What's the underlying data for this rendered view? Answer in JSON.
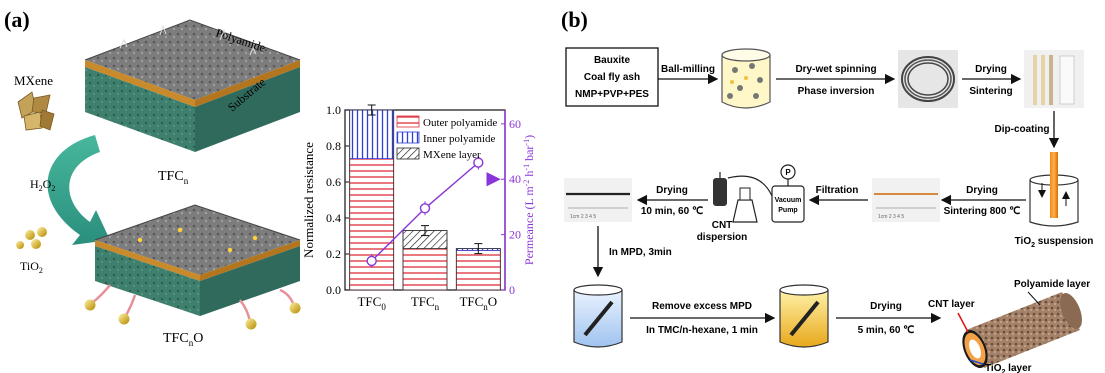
{
  "panel_a": {
    "label": "(a)",
    "labels": {
      "polyamide": "Polyamide",
      "substrate": "Substrate",
      "mxene": "MXene",
      "h2o2": "H",
      "h2o2_sub": "2",
      "h2o2_o": "O",
      "h2o2_sub2": "2",
      "tio2": "TiO",
      "tio2_sub": "2",
      "tfcn": "TFC",
      "tfcn_sub": "n",
      "tfcno": "TFC",
      "tfcno_sub": "n",
      "tfcno_o": "O"
    }
  },
  "chart_data": {
    "type": "bar",
    "categories": [
      "TFC0",
      "TFCn",
      "TFCnO"
    ],
    "tick_labels": [
      {
        "base": "TFC",
        "sub": "0",
        "suffix": ""
      },
      {
        "base": "TFC",
        "sub": "n",
        "suffix": ""
      },
      {
        "base": "TFC",
        "sub": "n",
        "suffix": "O"
      }
    ],
    "ylabel": "Normalized resistance",
    "y2label": "Permeance (L m-2 h-1 bar-1)",
    "y2label_parts": [
      "Permeance (L m",
      "-2",
      " h",
      "-1",
      " bar",
      "-1",
      ")"
    ],
    "ylim": [
      0,
      1.0
    ],
    "yticks": [
      0.0,
      0.2,
      0.4,
      0.6,
      0.8,
      1.0
    ],
    "y2lim": [
      0,
      65
    ],
    "y2ticks": [
      0,
      20,
      40,
      60
    ],
    "series": [
      {
        "name": "Outer polyamide",
        "values": [
          0.73,
          0.23,
          0.22
        ]
      },
      {
        "name": "Inner polyamide",
        "values": [
          0.27,
          0.0,
          0.01
        ]
      },
      {
        "name": "MXene layer",
        "values": [
          0.0,
          0.1,
          0.0
        ]
      }
    ],
    "totals": [
      1.0,
      0.33,
      0.23
    ],
    "permeance": [
      10.5,
      29.5,
      46.0
    ],
    "legend_position": "top-right",
    "colors": {
      "outer": "#e0303a",
      "inner": "#2e3fd8",
      "mxene": "#222222",
      "permeance": "#8a35d8"
    }
  },
  "panel_b": {
    "label": "(b)",
    "box_lines": [
      "Bauxite",
      "Coal fly ash",
      "NMP+PVP+PES"
    ],
    "ball_milling": "Ball-milling",
    "dry_wet_spinning": "Dry-wet  spinning",
    "phase_inversion": "Phase inversion",
    "drying1": "Drying",
    "sintering": "Sintering",
    "dip_coating": "Dip-coating",
    "drying2": "Drying",
    "sintering800": "Sintering 800 ℃",
    "tio2_suspension": "TiO",
    "tio2_suspension_sub": "2",
    "tio2_suspension_tail": " suspension",
    "filtration": "Filtration",
    "vacuum_pump": "Vacuum",
    "vacuum_pump2": "Pump",
    "p_gauge": "P",
    "cnt_dispersion1": "CNT",
    "cnt_dispersion2": "dispersion",
    "drying3": "Drying",
    "drying3_cond": "10 min, 60 ℃",
    "in_mpd": "In MPD, 3min",
    "remove_mpd": "Remove excess MPD",
    "in_tmc": "In TMC/n-hexane, 1 min",
    "drying4": "Drying",
    "drying4_cond": "5 min, 60 ℃",
    "polyamide_layer": "Polyamide layer",
    "cnt_layer": "CNT layer",
    "tio2_layer": "TiO",
    "tio2_layer_sub": "2",
    "tio2_layer_tail": " layer"
  }
}
